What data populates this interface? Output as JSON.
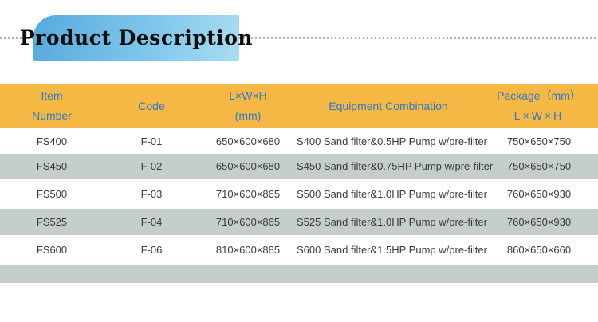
{
  "banner": {
    "title": "Product Description"
  },
  "colors": {
    "banner_gradient_start": "#55ABDE",
    "banner_gradient_end": "#A8DCF3",
    "dotted_line": "#9FB9C6",
    "table_header_bg": "#F6B845",
    "table_header_text": "#2E79C8",
    "row_alternate_bg": "#C5CDCD",
    "body_text": "#3B3B3B"
  },
  "table": {
    "columns": [
      {
        "key": "item-number",
        "lines": [
          "Item",
          "Number"
        ]
      },
      {
        "key": "code",
        "lines": [
          "Code"
        ]
      },
      {
        "key": "dimensions",
        "lines": [
          "L×W×H",
          "(mm)"
        ]
      },
      {
        "key": "equipment-combination",
        "lines": [
          "Equipment Combination"
        ]
      },
      {
        "key": "package",
        "lines": [
          "Package（mm）",
          "L×W×H"
        ]
      }
    ],
    "rows": [
      {
        "cells": [
          "FS400",
          "F-01",
          "650×600×680",
          "S400 Sand filter&0.5HP Pump w/pre-filter",
          "750×650×750"
        ]
      },
      {
        "cells": [
          "FS450",
          "F-02",
          "650×600×680",
          "S450 Sand filter&0.75HP Pump w/pre-filter",
          "750×650×750"
        ]
      },
      {
        "cells": [
          "FS500",
          "F-03",
          "710×600×865",
          "S500 Sand filter&1.0HP Pump w/pre-filter",
          "760×650×930"
        ]
      },
      {
        "cells": [
          "FS525",
          "F-04",
          "710×600×865",
          "S525 Sand filter&1.0HP Pump w/pre-filter",
          "760×650×930"
        ]
      },
      {
        "cells": [
          "FS600",
          "F-06",
          "810×600×885",
          "S600 Sand filter&1.5HP Pump w/pre-filter",
          "860×650×660"
        ]
      },
      {
        "cells": [
          "",
          "",
          "",
          "",
          ""
        ]
      }
    ]
  }
}
